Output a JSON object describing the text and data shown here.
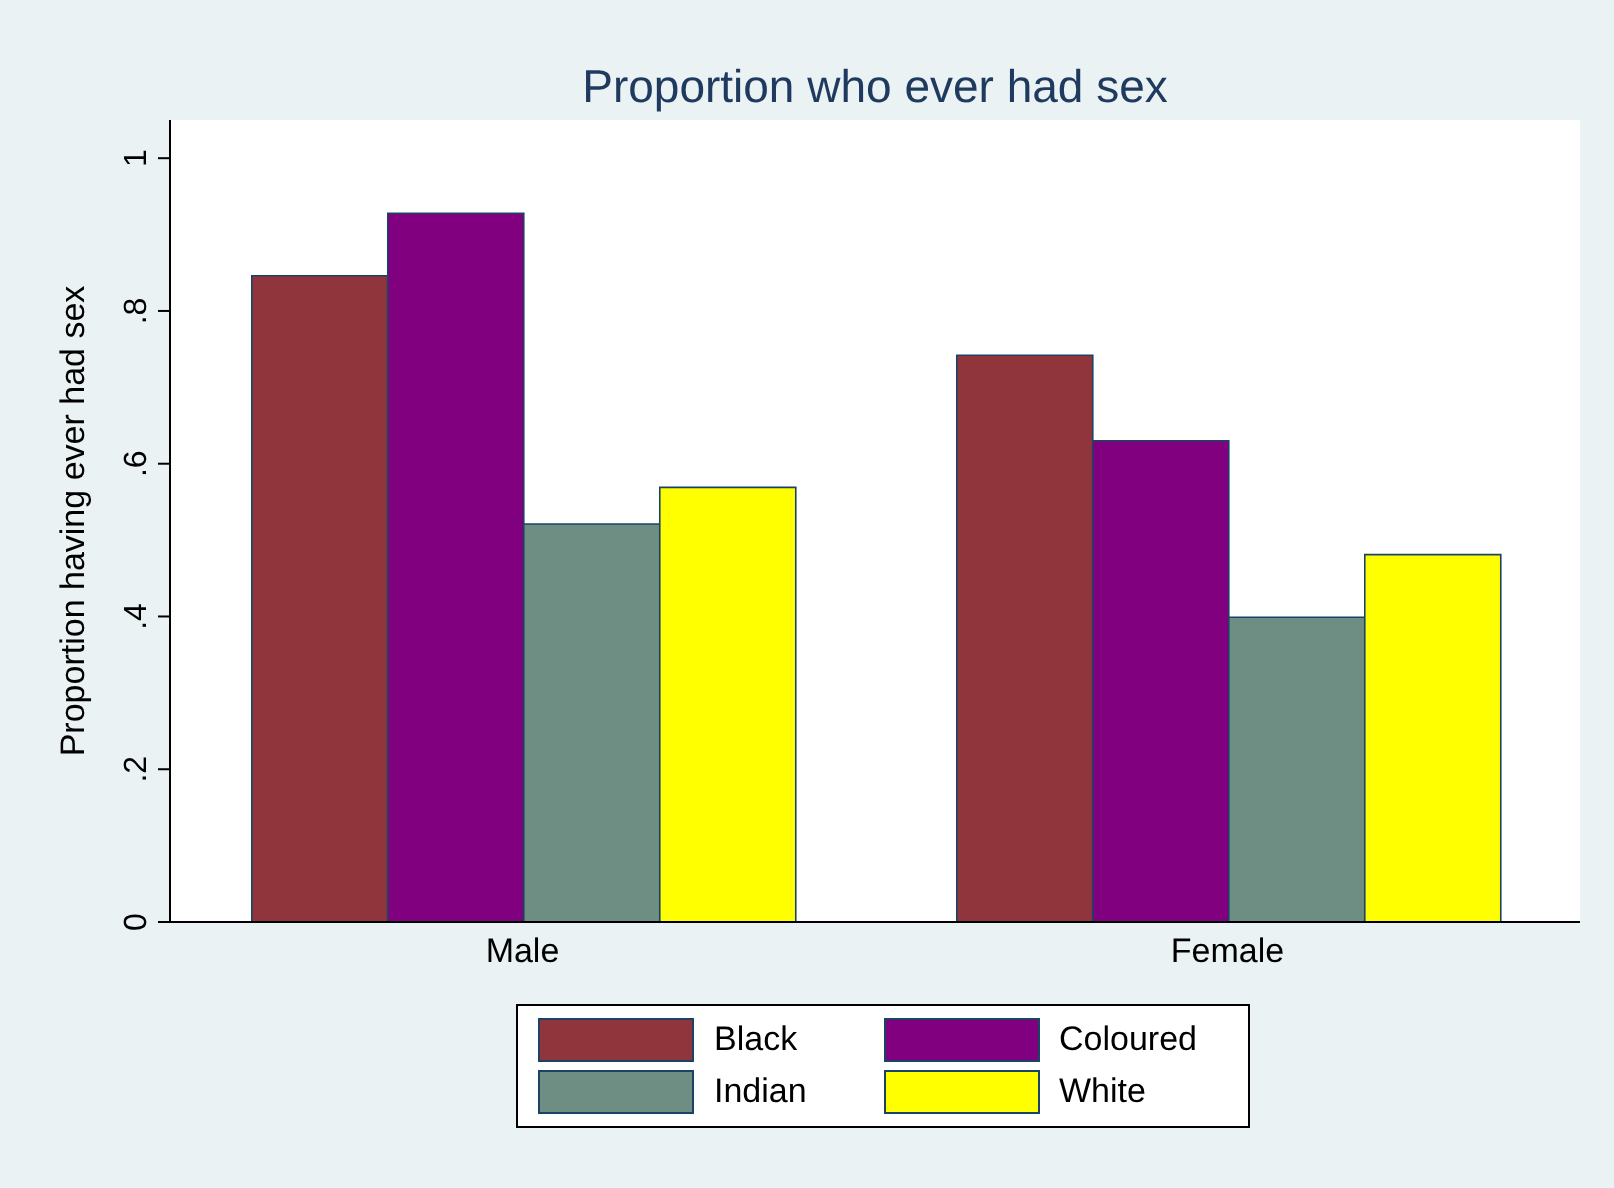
{
  "chart_data": {
    "type": "bar",
    "title": "Proportion who ever had sex",
    "ylabel": "Proportion having ever had sex",
    "categories": [
      "Male",
      "Female"
    ],
    "series": [
      {
        "name": "Black",
        "color": "#90353b",
        "values": [
          0.846,
          0.742
        ]
      },
      {
        "name": "Coloured",
        "color": "#800080",
        "values": [
          0.928,
          0.63
        ]
      },
      {
        "name": "Indian",
        "color": "#6e8e84",
        "values": [
          0.521,
          0.399
        ]
      },
      {
        "name": "White",
        "color": "#ffff00",
        "values": [
          0.569,
          0.481
        ]
      }
    ],
    "ylim": [
      0,
      1.05
    ],
    "yticks": [
      {
        "value": 0,
        "label": "0"
      },
      {
        "value": 0.2,
        "label": ".2"
      },
      {
        "value": 0.4,
        "label": ".4"
      },
      {
        "value": 0.6,
        "label": ".6"
      },
      {
        "value": 0.8,
        "label": ".8"
      },
      {
        "value": 1,
        "label": "1"
      }
    ],
    "grid": false,
    "legend": "bottom"
  }
}
